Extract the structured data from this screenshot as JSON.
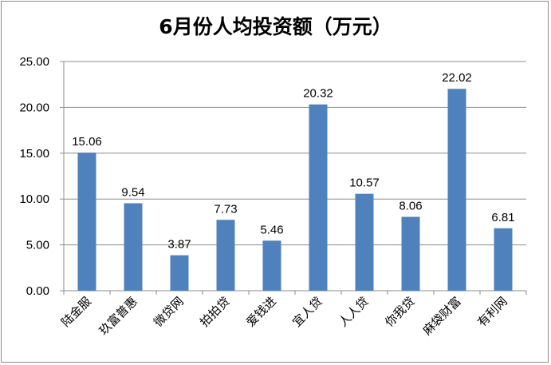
{
  "chart_data": {
    "type": "bar",
    "title": "6月份人均投资额（万元）",
    "xlabel": "",
    "ylabel": "",
    "categories": [
      "陆金服",
      "玖富普惠",
      "微贷网",
      "拍拍贷",
      "爱钱进",
      "宜人贷",
      "人人贷",
      "你我贷",
      "麻袋财富",
      "有利网"
    ],
    "values": [
      15.06,
      9.54,
      3.87,
      7.73,
      5.46,
      20.32,
      10.57,
      8.06,
      22.02,
      6.81
    ],
    "data_labels": [
      "15.06",
      "9.54",
      "3.87",
      "7.73",
      "5.46",
      "20.32",
      "10.57",
      "8.06",
      "22.02",
      "6.81"
    ],
    "ylim": [
      0,
      25
    ],
    "yticks": [
      0,
      5,
      10,
      15,
      20,
      25
    ],
    "ytick_labels": [
      "0.00",
      "5.00",
      "10.00",
      "15.00",
      "20.00",
      "25.00"
    ],
    "grid": true,
    "legend": "none",
    "bar_color": "#4f81bd"
  }
}
